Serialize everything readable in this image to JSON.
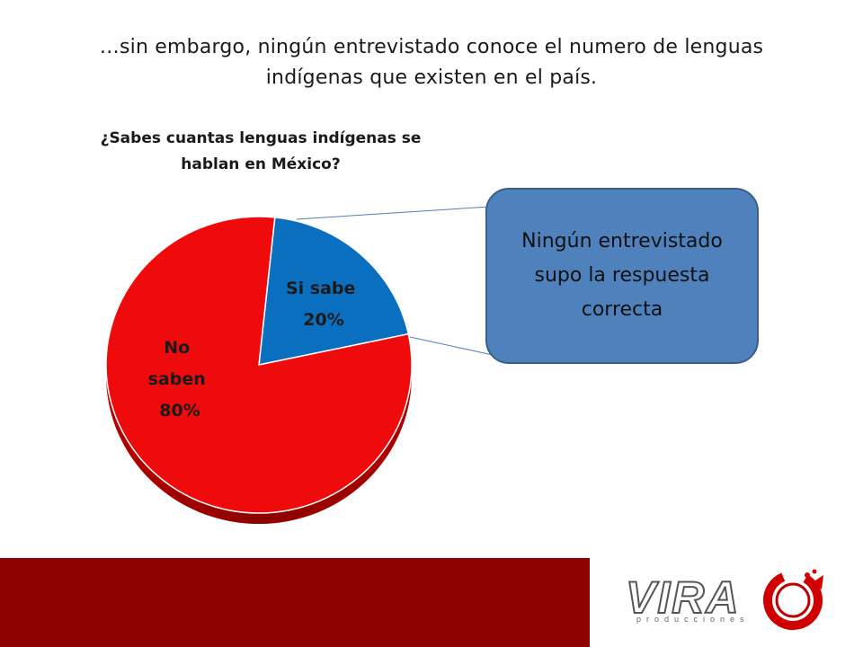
{
  "slide": {
    "title": "…sin embargo, ningún entrevistado conoce el numero de lenguas indígenas que existen en el país."
  },
  "callout": {
    "text": "Ningún entrevistado supo la respuesta correcta"
  },
  "logo": {
    "word": "VIRA",
    "subtitle": "producciones"
  },
  "colors": {
    "no_saben": "#ef0b0b",
    "si_sabe": "#0b6fc0",
    "footer_bar": "#8f0202",
    "callout_fill": "#4f81bd"
  },
  "chart_data": {
    "type": "pie",
    "title": "¿Sabes cuantas lenguas indígenas se hablan en México?",
    "slices": [
      {
        "label": "Si sabe",
        "value": 20,
        "value_label": "20%",
        "color": "#0b6fc0"
      },
      {
        "label": "No saben",
        "value": 80,
        "value_label": "80%",
        "color": "#ef0b0b"
      }
    ]
  }
}
